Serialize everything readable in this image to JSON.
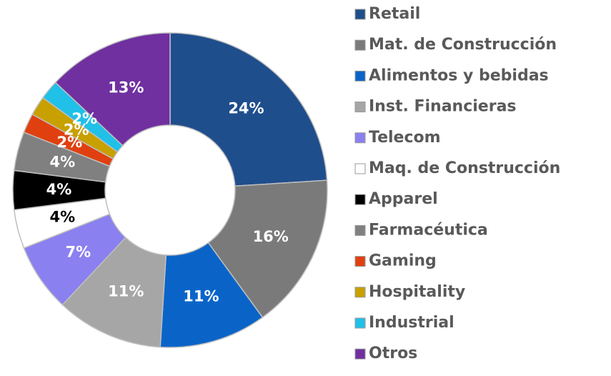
{
  "chart_data": {
    "type": "donut",
    "categories": [
      "Retail",
      "Mat. de Construcción",
      "Alimentos y bebidas",
      "Inst. Financieras",
      "Telecom",
      "Maq. de Construcción",
      "Apparel",
      "Farmacéutica",
      "Gaming",
      "Hospitality",
      "Industrial",
      "Otros"
    ],
    "values": [
      24,
      16,
      11,
      11,
      7,
      4,
      4,
      4,
      2,
      2,
      2,
      13
    ],
    "value_labels": [
      "24%",
      "16%",
      "11%",
      "11%",
      "7%",
      "4%",
      "4%",
      "4%",
      "2%",
      "2%",
      "2%",
      "13%"
    ],
    "colors": [
      "#1f4e8c",
      "#7a7a7a",
      "#0a64c8",
      "#a6a6a6",
      "#8a80f0",
      "#ffffff",
      "#000000",
      "#808080",
      "#e04010",
      "#c8a000",
      "#20c0e8",
      "#7030a0"
    ]
  }
}
